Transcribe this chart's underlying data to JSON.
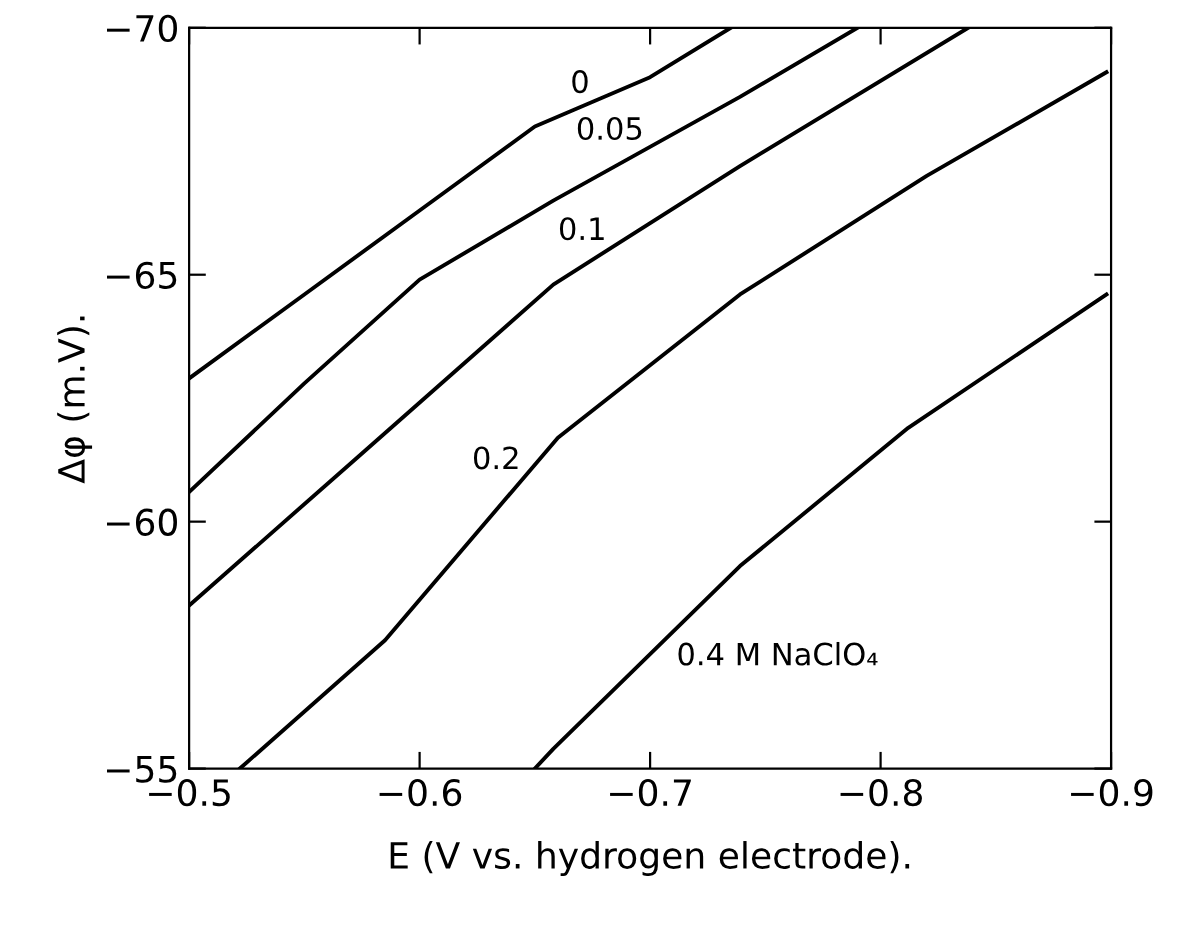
{
  "chart_data": {
    "type": "line",
    "xlabel": "E (V vs. hydrogen electrode).",
    "ylabel": "Δφ (m.V).",
    "xlim": [
      -0.5,
      -0.9
    ],
    "xticks": [
      -0.5,
      -0.6,
      -0.7,
      -0.8,
      -0.9
    ],
    "ylim": [
      -55,
      -70
    ],
    "yticks": [
      -55,
      -60,
      -65,
      -70
    ],
    "grid": false,
    "legend": false,
    "marker": "none",
    "line_style": "solid",
    "series": [
      {
        "name": "0",
        "color": "#000000",
        "x": [
          -0.5,
          -0.55,
          -0.6,
          -0.65,
          -0.7,
          -0.735
        ],
        "values": [
          -62.9,
          -64.6,
          -66.3,
          -68.0,
          -69.0,
          -70.0
        ]
      },
      {
        "name": "0.05",
        "color": "#000000",
        "x": [
          -0.5,
          -0.55,
          -0.6,
          -0.658,
          -0.739,
          -0.79
        ],
        "values": [
          -60.6,
          -62.8,
          -64.9,
          -66.5,
          -68.6,
          -70.0
        ]
      },
      {
        "name": "0.1",
        "color": "#000000",
        "x": [
          -0.5,
          -0.573,
          -0.658,
          -0.739,
          -0.838
        ],
        "values": [
          -58.3,
          -61.3,
          -64.8,
          -67.2,
          -70.0
        ]
      },
      {
        "name": "0.2",
        "color": "#000000",
        "x": [
          -0.522,
          -0.585,
          -0.66,
          -0.739,
          -0.82,
          -0.898
        ],
        "values": [
          -55.0,
          -57.6,
          -61.7,
          -64.6,
          -67.0,
          -69.1
        ]
      },
      {
        "name": "0.4 M NaClO₄",
        "color": "#000000",
        "x": [
          -0.65,
          -0.658,
          -0.739,
          -0.812,
          -0.898
        ],
        "values": [
          -55.0,
          -55.4,
          -59.1,
          -61.9,
          -64.6
        ]
      }
    ]
  }
}
